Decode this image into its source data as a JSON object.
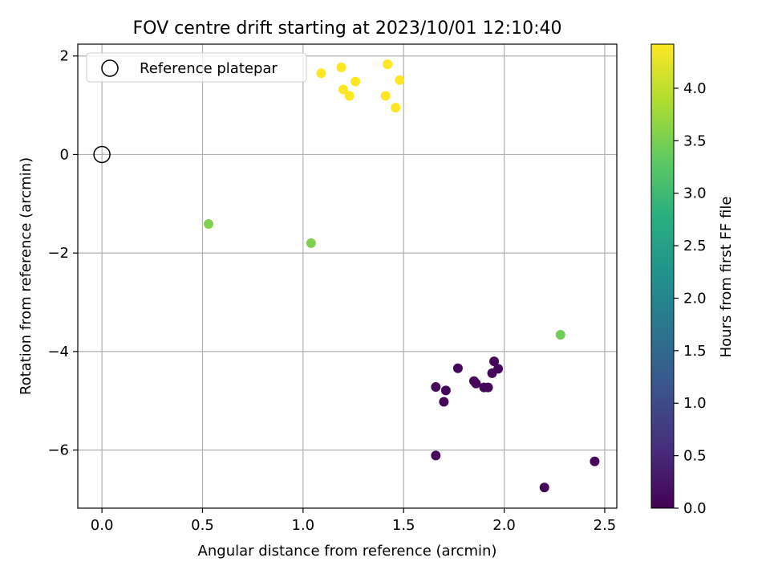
{
  "chart_data": {
    "type": "scatter",
    "title": "FOV centre drift starting at 2023/10/01 12:10:40",
    "xlabel": "Angular distance from reference (arcmin)",
    "ylabel": "Rotation from reference (arcmin)",
    "xlim": [
      -0.12,
      2.56
    ],
    "ylim": [
      -7.18,
      2.24
    ],
    "x_ticks": [
      0.0,
      0.5,
      1.0,
      1.5,
      2.0,
      2.5
    ],
    "x_tick_labels": [
      "0.0",
      "0.5",
      "1.0",
      "1.5",
      "2.0",
      "2.5"
    ],
    "y_ticks": [
      2,
      0,
      -2,
      -4,
      -6
    ],
    "y_tick_labels": [
      "2",
      "0",
      "−2",
      "−4",
      "−6"
    ],
    "grid": true,
    "legend": {
      "location": "upper-left",
      "entries": [
        {
          "label": "Reference platepar",
          "marker": "open-circle",
          "x": 0.0,
          "y": 0.0
        }
      ]
    },
    "colorbar": {
      "label": "Hours from first FF file",
      "colormap": "viridis",
      "min": 0.0,
      "max": 4.42,
      "ticks": [
        0.0,
        0.5,
        1.0,
        1.5,
        2.0,
        2.5,
        3.0,
        3.5,
        4.0
      ],
      "tick_labels": [
        "0.0",
        "0.5",
        "1.0",
        "1.5",
        "2.0",
        "2.5",
        "3.0",
        "3.5",
        "4.0"
      ]
    },
    "points": [
      {
        "x": 1.09,
        "y": 1.65,
        "hours": 4.42
      },
      {
        "x": 1.19,
        "y": 1.77,
        "hours": 4.42
      },
      {
        "x": 1.42,
        "y": 1.83,
        "hours": 4.42
      },
      {
        "x": 1.2,
        "y": 1.32,
        "hours": 4.42
      },
      {
        "x": 1.26,
        "y": 1.48,
        "hours": 4.42
      },
      {
        "x": 1.48,
        "y": 1.51,
        "hours": 4.42
      },
      {
        "x": 1.23,
        "y": 1.19,
        "hours": 4.42
      },
      {
        "x": 1.41,
        "y": 1.19,
        "hours": 4.42
      },
      {
        "x": 1.46,
        "y": 0.95,
        "hours": 4.42
      },
      {
        "x": 0.53,
        "y": -1.41,
        "hours": 3.55
      },
      {
        "x": 1.04,
        "y": -1.8,
        "hours": 3.55
      },
      {
        "x": 2.28,
        "y": -3.66,
        "hours": 3.45
      },
      {
        "x": 1.77,
        "y": -4.34,
        "hours": 0.08
      },
      {
        "x": 1.95,
        "y": -4.2,
        "hours": 0.08
      },
      {
        "x": 1.97,
        "y": -4.35,
        "hours": 0.08
      },
      {
        "x": 1.94,
        "y": -4.44,
        "hours": 0.08
      },
      {
        "x": 1.85,
        "y": -4.6,
        "hours": 0.08
      },
      {
        "x": 1.86,
        "y": -4.65,
        "hours": 0.08
      },
      {
        "x": 1.66,
        "y": -4.72,
        "hours": 0.08
      },
      {
        "x": 1.71,
        "y": -4.79,
        "hours": 0.08
      },
      {
        "x": 1.9,
        "y": -4.73,
        "hours": 0.08
      },
      {
        "x": 1.92,
        "y": -4.73,
        "hours": 0.08
      },
      {
        "x": 1.7,
        "y": -5.02,
        "hours": 0.08
      },
      {
        "x": 1.66,
        "y": -6.11,
        "hours": 0.08
      },
      {
        "x": 2.45,
        "y": -6.23,
        "hours": 0.08
      },
      {
        "x": 2.2,
        "y": -6.76,
        "hours": 0.08
      }
    ]
  }
}
